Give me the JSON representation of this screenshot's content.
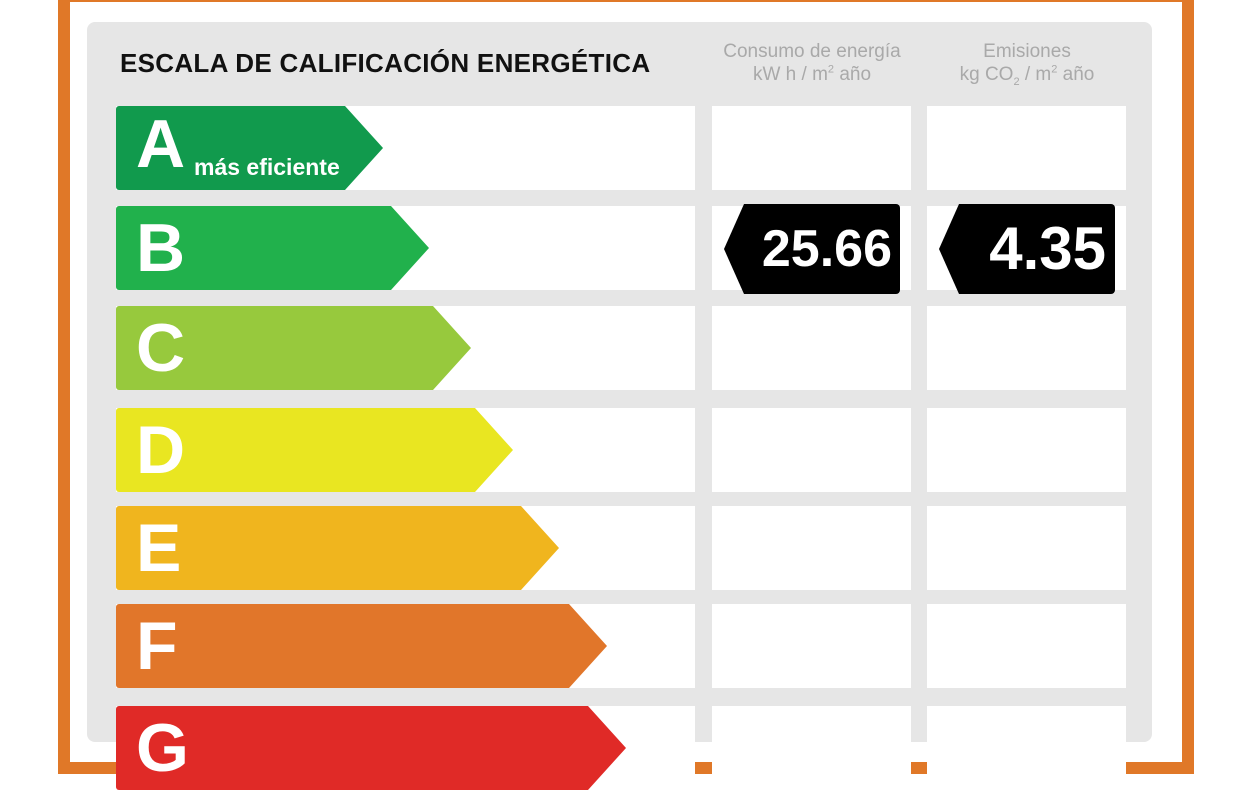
{
  "title": "ESCALA DE CALIFICACIÓN ENERGÉTICA",
  "columns": {
    "energy": {
      "line1": "Consumo de energía",
      "line2_pre": "kW h / m",
      "line2_sup": "2",
      "line2_post": " año"
    },
    "emissions": {
      "line1": "Emisiones",
      "line2_pre": "kg CO",
      "line2_sub": "2",
      "line2_mid": " / m",
      "line2_sup": "2",
      "line2_post": " año"
    }
  },
  "ratings": [
    {
      "letter": "A",
      "label": "más eficiente",
      "color": "#119A4D"
    },
    {
      "letter": "B",
      "label": "",
      "color": "#21B14C"
    },
    {
      "letter": "C",
      "label": "",
      "color": "#97C93D"
    },
    {
      "letter": "D",
      "label": "",
      "color": "#E9E621"
    },
    {
      "letter": "E",
      "label": "",
      "color": "#F0B51E"
    },
    {
      "letter": "F",
      "label": "",
      "color": "#E1762A"
    },
    {
      "letter": "G",
      "label": "",
      "color": "#E02A27"
    }
  ],
  "current": {
    "rating": "B",
    "energy_value": "25.66",
    "emissions_value": "4.35"
  },
  "colors": {
    "frame": "#E07828",
    "panel": "#E6E6E6",
    "badge": "#000000"
  }
}
